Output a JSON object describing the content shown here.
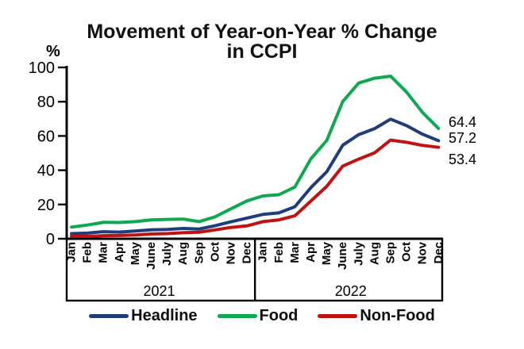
{
  "header": {
    "title_line1": "Movement of Year-on-Year % Change",
    "title_line2": "in CCPI",
    "y_axis_unit_label": "%"
  },
  "chart_data": {
    "type": "line",
    "title": "Movement of Year-on-Year % Change in CCPI",
    "ylabel": "%",
    "ylim": [
      0,
      100
    ],
    "yticks": [
      0,
      20,
      40,
      60,
      80,
      100
    ],
    "grid": false,
    "legend_position": "bottom",
    "x_months": [
      "Jan",
      "Feb",
      "Mar",
      "Apr",
      "May",
      "June",
      "July",
      "Aug",
      "Sep",
      "Oct",
      "Nov",
      "Dec",
      "Jan",
      "Feb",
      "Mar",
      "Apr",
      "May",
      "June",
      "July",
      "Aug",
      "Sep",
      "Oct",
      "Nov",
      "Dec"
    ],
    "x_year_groups": [
      {
        "label": "2021",
        "start_index": 0,
        "end_index": 11
      },
      {
        "label": "2022",
        "start_index": 12,
        "end_index": 23
      }
    ],
    "series": [
      {
        "name": "Headline",
        "color": "#1F3D7C",
        "end_label": "57.2",
        "values": [
          3.0,
          3.3,
          4.1,
          3.9,
          4.5,
          5.2,
          5.4,
          6.0,
          5.7,
          7.6,
          9.9,
          12.1,
          14.2,
          15.1,
          18.7,
          29.8,
          39.1,
          54.6,
          60.8,
          64.3,
          69.8,
          66.0,
          61.0,
          57.2
        ]
      },
      {
        "name": "Food",
        "color": "#0EA94E",
        "end_label": "64.4",
        "values": [
          6.8,
          8.0,
          9.6,
          9.5,
          10.0,
          11.0,
          11.3,
          11.5,
          10.0,
          12.8,
          17.5,
          22.1,
          25.0,
          25.7,
          30.2,
          46.6,
          57.4,
          80.1,
          90.9,
          93.7,
          94.9,
          85.6,
          73.7,
          64.4
        ]
      },
      {
        "name": "Non-Food",
        "color": "#C11212",
        "end_label": "53.4",
        "values": [
          1.5,
          1.4,
          1.8,
          1.9,
          2.2,
          2.8,
          3.0,
          3.5,
          3.8,
          5.2,
          6.6,
          7.5,
          10.0,
          11.0,
          13.4,
          22.0,
          30.6,
          42.4,
          46.5,
          50.2,
          57.6,
          56.3,
          54.5,
          53.4
        ]
      }
    ]
  },
  "legend": {
    "items": [
      {
        "label": "Headline",
        "color": "#1F3D7C"
      },
      {
        "label": "Food",
        "color": "#0EA94E"
      },
      {
        "label": "Non-Food",
        "color": "#C11212"
      }
    ]
  }
}
